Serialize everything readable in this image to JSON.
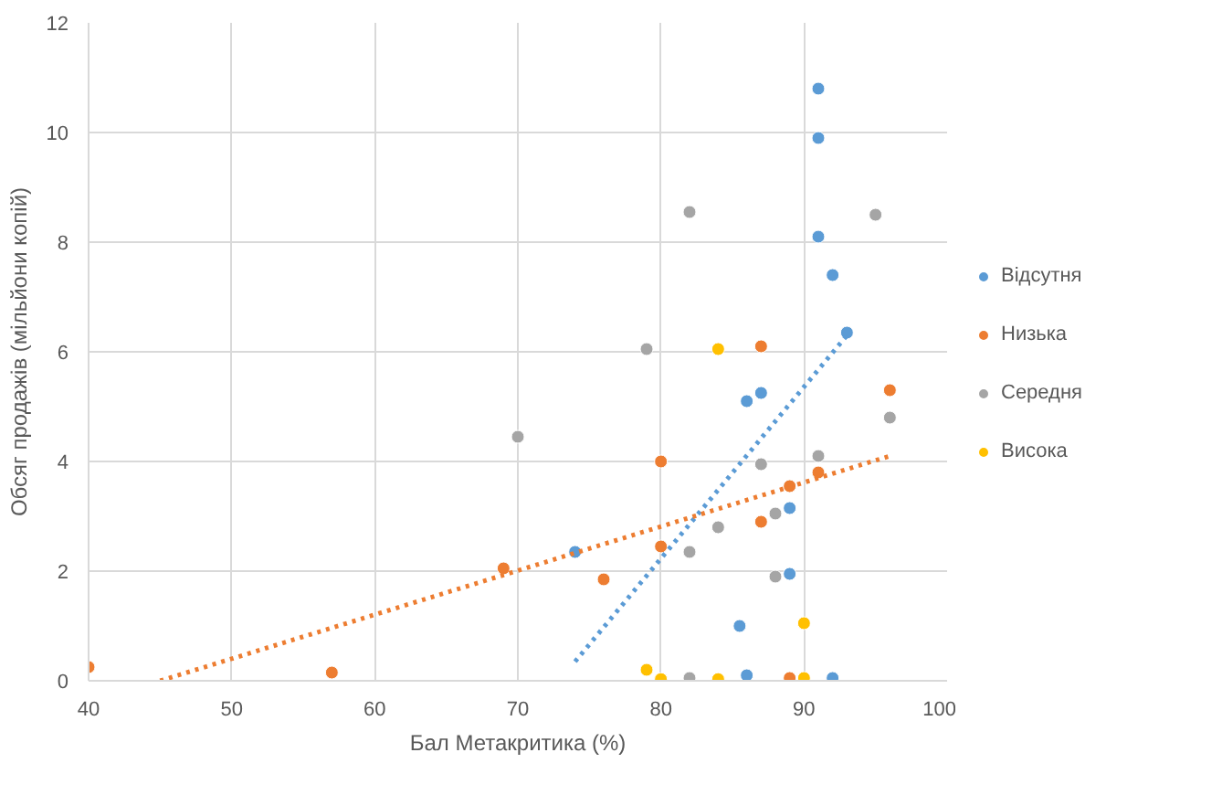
{
  "chart_data": {
    "type": "scatter",
    "xlabel": "Бал Метакритика (%)",
    "ylabel": "Обсяг продажів (мільйони копій)",
    "xlim": [
      40,
      100
    ],
    "ylim": [
      0,
      12
    ],
    "xticks": [
      40,
      50,
      60,
      70,
      80,
      90,
      100
    ],
    "yticks": [
      0,
      2,
      4,
      6,
      8,
      10,
      12
    ],
    "grid": true,
    "legend": "right",
    "marker": "circle",
    "series": [
      {
        "name": "Відсутня",
        "color": "#5b9bd5",
        "x": [
          91,
          91,
          91,
          92,
          93,
          86,
          87,
          89,
          89,
          85.5,
          86,
          92,
          74
        ],
        "values": [
          10.8,
          9.9,
          8.1,
          7.4,
          6.35,
          5.1,
          5.25,
          3.15,
          1.95,
          1.0,
          0.1,
          0.05,
          2.35
        ]
      },
      {
        "name": "Низька",
        "color": "#ed7d31",
        "x": [
          40,
          57,
          69,
          76,
          80,
          80,
          87,
          87,
          89,
          91,
          96,
          89
        ],
        "values": [
          0.25,
          0.15,
          2.05,
          1.85,
          4.0,
          2.45,
          6.1,
          2.9,
          3.55,
          3.8,
          5.3,
          0.05
        ]
      },
      {
        "name": "Середня",
        "color": "#a5a5a5",
        "x": [
          70,
          79,
          82,
          95,
          96,
          91,
          87,
          88,
          84,
          82,
          88,
          82
        ],
        "values": [
          4.45,
          6.05,
          8.55,
          8.5,
          4.8,
          4.1,
          3.95,
          3.05,
          2.8,
          2.35,
          1.9,
          0.05
        ]
      },
      {
        "name": "Висока",
        "color": "#ffc000",
        "x": [
          84,
          79,
          80,
          84,
          90,
          90
        ],
        "values": [
          6.05,
          0.2,
          0.03,
          0.03,
          1.05,
          0.05
        ]
      },
      {
        "type": "line",
        "color": "#5b9bd5",
        "line_style": "dotted",
        "marker": "none",
        "x": [
          74,
          93
        ],
        "values": [
          0.35,
          6.3
        ]
      },
      {
        "type": "line",
        "color": "#ed7d31",
        "line_style": "dotted",
        "marker": "none",
        "x": [
          45,
          96
        ],
        "values": [
          0,
          4.1
        ]
      }
    ]
  }
}
